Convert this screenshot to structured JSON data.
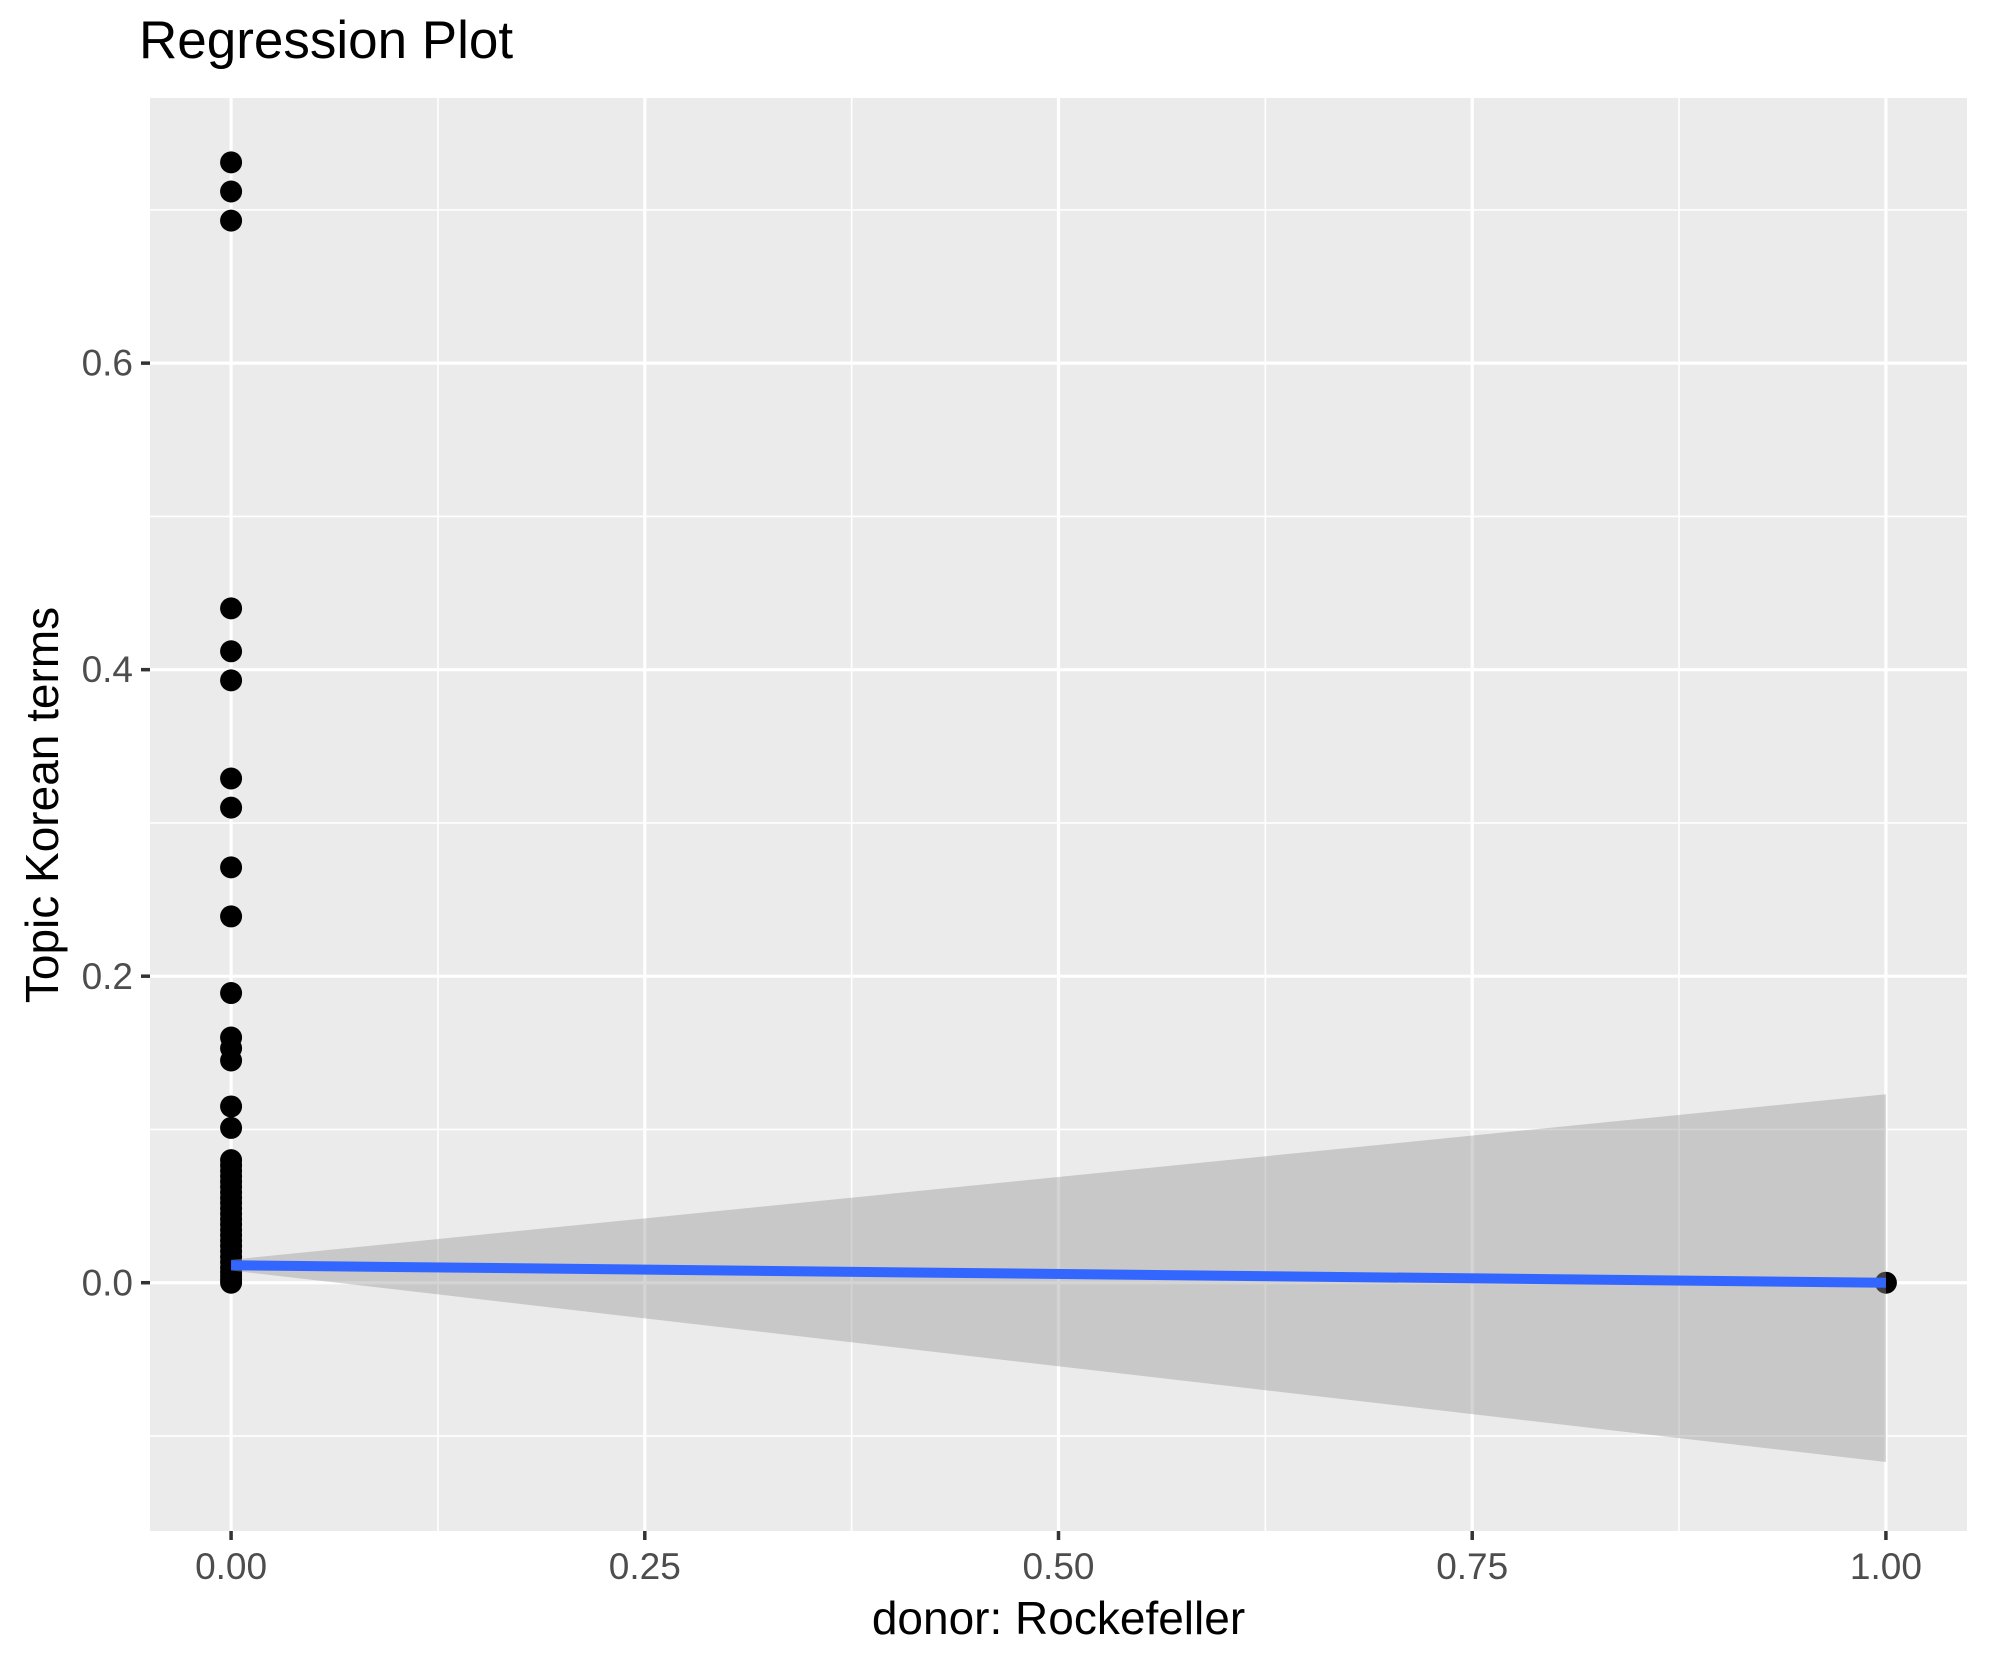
{
  "title": "Regression Plot",
  "chart_data": {
    "type": "scatter",
    "title": "Regression Plot",
    "xlabel": "donor: Rockefeller",
    "ylabel": "Topic Korean terms",
    "xlim": [
      -0.049,
      1.049
    ],
    "ylim": [
      -0.162,
      0.773
    ],
    "x_major_ticks": [
      0,
      0.25,
      0.5,
      0.75,
      1
    ],
    "x_tick_labels": [
      "0.00",
      "0.25",
      "0.50",
      "0.75",
      "1.00"
    ],
    "x_minor_ticks": [
      0.125,
      0.375,
      0.625,
      0.875
    ],
    "y_major_ticks": [
      0,
      0.2,
      0.4,
      0.6
    ],
    "y_tick_labels": [
      "0.0",
      "0.2",
      "0.4",
      "0.6"
    ],
    "y_minor_ticks": [
      -0.1,
      0.1,
      0.3,
      0.5,
      0.7
    ],
    "grid": true,
    "legend": false,
    "series": [
      {
        "name": "observations",
        "type": "scatter",
        "color": "#000000",
        "marker_radius": 11,
        "points": [
          [
            0,
            0.731
          ],
          [
            0,
            0.712
          ],
          [
            0,
            0.693
          ],
          [
            0,
            0.44
          ],
          [
            0,
            0.412
          ],
          [
            0,
            0.393
          ],
          [
            0,
            0.329
          ],
          [
            0,
            0.31
          ],
          [
            0,
            0.271
          ],
          [
            0,
            0.239
          ],
          [
            0,
            0.189
          ],
          [
            0,
            0.16
          ],
          [
            0,
            0.153
          ],
          [
            0,
            0.145
          ],
          [
            0,
            0.115
          ],
          [
            0,
            0.101
          ],
          [
            0,
            0.08
          ],
          [
            0,
            0.0765
          ],
          [
            0,
            0.073
          ],
          [
            0,
            0.0695
          ],
          [
            0,
            0.066
          ],
          [
            0,
            0.0625
          ],
          [
            0,
            0.059
          ],
          [
            0,
            0.0555
          ],
          [
            0,
            0.052
          ],
          [
            0,
            0.0485
          ],
          [
            0,
            0.045
          ],
          [
            0,
            0.0415
          ],
          [
            0,
            0.038
          ],
          [
            0,
            0.0345
          ],
          [
            0,
            0.031
          ],
          [
            0,
            0.0275
          ],
          [
            0,
            0.024
          ],
          [
            0,
            0.0205
          ],
          [
            0,
            0.017
          ],
          [
            0,
            0.0135
          ],
          [
            0,
            0.01
          ],
          [
            0,
            0.007
          ],
          [
            0,
            0.0045
          ],
          [
            0,
            0.002
          ],
          [
            0,
            0.0
          ],
          [
            1,
            0.0
          ]
        ]
      },
      {
        "name": "confidence-band",
        "type": "area",
        "color": "#999999",
        "opacity": 0.42,
        "upper": [
          [
            0,
            0.015
          ],
          [
            1,
            0.123
          ]
        ],
        "lower": [
          [
            0,
            0.008
          ],
          [
            1,
            -0.117
          ]
        ]
      },
      {
        "name": "regression-line",
        "type": "line",
        "color": "#3366FF",
        "stroke_width": 10,
        "points": [
          [
            0,
            0.0114
          ],
          [
            1,
            0.0
          ]
        ]
      }
    ],
    "theme": {
      "outer_bg": "#FFFFFF",
      "panel_bg": "#EBEBEB",
      "grid_color": "#FFFFFF",
      "tick_label_color": "#4D4D4D",
      "tick_mark_color": "#333333",
      "title_color": "#000000"
    }
  }
}
